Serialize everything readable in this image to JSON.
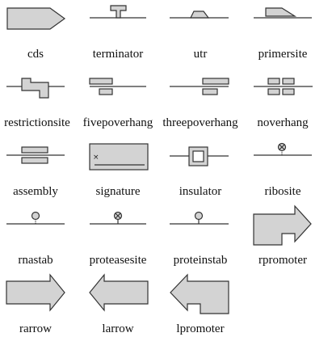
{
  "colors": {
    "glyph_fill": "#d3d3d3",
    "glyph_stroke": "#333333",
    "background": "#ffffff",
    "label_text": "#111111"
  },
  "glyphs": [
    {
      "name": "cds",
      "label": "cds",
      "icon": "cds-icon"
    },
    {
      "name": "terminator",
      "label": "terminator",
      "icon": "terminator-icon"
    },
    {
      "name": "utr",
      "label": "utr",
      "icon": "utr-icon"
    },
    {
      "name": "primersite",
      "label": "primersite",
      "icon": "primersite-icon"
    },
    {
      "name": "restrictionsite",
      "label": "restrictionsite",
      "icon": "restrictionsite-icon"
    },
    {
      "name": "fivepoverhang",
      "label": "fivepoverhang",
      "icon": "fivepoverhang-icon"
    },
    {
      "name": "threepoverhang",
      "label": "threepoverhang",
      "icon": "threepoverhang-icon"
    },
    {
      "name": "noverhang",
      "label": "noverhang",
      "icon": "noverhang-icon"
    },
    {
      "name": "assembly",
      "label": "assembly",
      "icon": "assembly-icon"
    },
    {
      "name": "signature",
      "label": "signature",
      "icon": "signature-icon"
    },
    {
      "name": "insulator",
      "label": "insulator",
      "icon": "insulator-icon"
    },
    {
      "name": "ribosite",
      "label": "ribosite",
      "icon": "ribosite-icon"
    },
    {
      "name": "rnastab",
      "label": "rnastab",
      "icon": "rnastab-icon"
    },
    {
      "name": "proteasesite",
      "label": "proteasesite",
      "icon": "proteasesite-icon"
    },
    {
      "name": "proteinstab",
      "label": "proteinstab",
      "icon": "proteinstab-icon"
    },
    {
      "name": "rpromoter",
      "label": "rpromoter",
      "icon": "rpromoter-icon"
    },
    {
      "name": "rarrow",
      "label": "rarrow",
      "icon": "rarrow-icon"
    },
    {
      "name": "larrow",
      "label": "larrow",
      "icon": "larrow-icon"
    },
    {
      "name": "lpromoter",
      "label": "lpromoter",
      "icon": "lpromoter-icon"
    }
  ]
}
